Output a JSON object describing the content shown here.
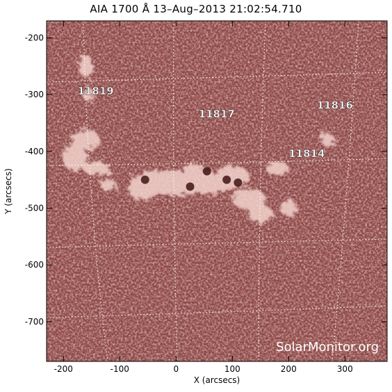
{
  "title": "AIA 1700 Å 13–Aug–2013 21:02:54.710",
  "xlabel": "X (arcsecs)",
  "ylabel": "Y (arcsecs)",
  "watermark": "SolarMonitor.org",
  "colors": {
    "background_disk": "#8f4a48",
    "bright_plage": "#f3d2cc",
    "grid_lines": "#ffffff"
  },
  "axes": {
    "x_range": [
      -230,
      375
    ],
    "y_range": [
      -770,
      -170
    ],
    "x_ticks": [
      "-200",
      "-100",
      "0",
      "100",
      "200",
      "300"
    ],
    "y_ticks": [
      "-200",
      "-300",
      "-400",
      "-500",
      "-600",
      "-700"
    ]
  },
  "active_regions": [
    {
      "label": "11819",
      "x": -175,
      "y": -300
    },
    {
      "label": "11817",
      "x": 40,
      "y": -340
    },
    {
      "label": "11816",
      "x": 250,
      "y": -325
    },
    {
      "label": "11814",
      "x": 200,
      "y": -410
    }
  ],
  "sunspots": [
    {
      "x": -55,
      "y": -450
    },
    {
      "x": 25,
      "y": -462
    },
    {
      "x": 55,
      "y": -435
    },
    {
      "x": 90,
      "y": -450
    },
    {
      "x": 110,
      "y": -455
    }
  ]
}
